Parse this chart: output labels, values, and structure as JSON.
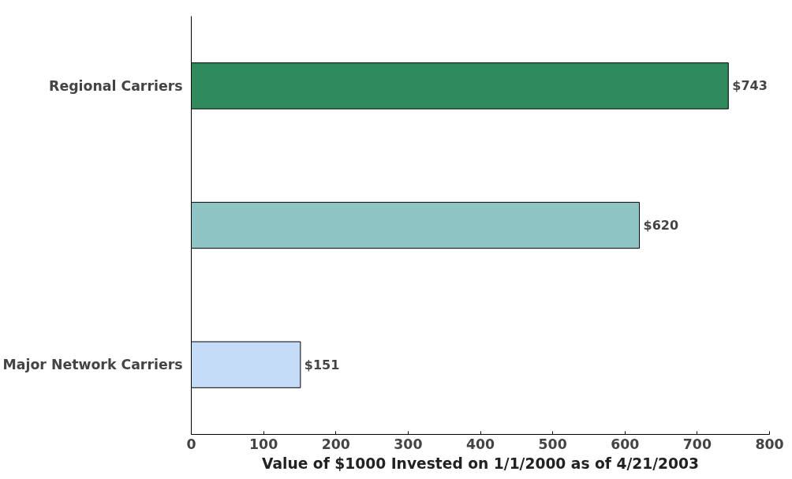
{
  "chart_data": {
    "type": "bar",
    "orientation": "horizontal",
    "xlabel": "Value of $1000 Invested on 1/1/2000 as of 4/21/2003",
    "categories": [
      "Regional Carriers",
      null,
      "Major Network Carriers"
    ],
    "values": [
      743,
      620,
      151
    ],
    "value_labels": [
      "$743",
      "$620",
      "$151"
    ],
    "colors": [
      "#2f8a5c",
      "#8fc4c4",
      "#c4dcf8"
    ],
    "xlim": [
      0,
      800
    ],
    "xticks": [
      0,
      100,
      200,
      300,
      400,
      500,
      600,
      700,
      800
    ],
    "grid": false
  }
}
